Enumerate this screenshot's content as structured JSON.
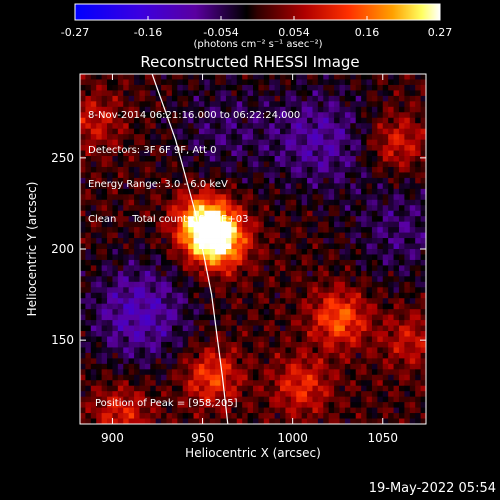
{
  "colorbar": {
    "ticks": [
      "-0.27",
      "-0.16",
      "-0.054",
      "0.054",
      "0.16",
      "0.27"
    ],
    "unit_label": "(photons cm⁻² s⁻¹ asec⁻²)"
  },
  "info_lines": [
    "8-Nov-2014 06:21:16.000 to 06:22:24.000",
    "Detectors: 3F 6F 9F, Att 0",
    "Energy Range: 3.0 - 6.0 keV",
    "Clean     Total counts: 5.67E+03"
  ],
  "peak_label": "Position of Peak = [958,205]",
  "timestamp": "19-May-2022 05:54",
  "chart_data": {
    "type": "heatmap",
    "title": "Reconstructed RHESSI Image",
    "xlabel": "Heliocentric X (arcsec)",
    "ylabel": "Heliocentric Y (arcsec)",
    "xlim": [
      882,
      1074
    ],
    "ylim": [
      104,
      296
    ],
    "xticks": [
      900,
      950,
      1000,
      1050
    ],
    "yticks": [
      150,
      200,
      250
    ],
    "color_range": [
      -0.27,
      0.27
    ],
    "colormap": [
      "#0000ff",
      "#5a1ed2",
      "#000000",
      "#a00000",
      "#ff4000",
      "#ffa000",
      "#ffff80",
      "#ffffff"
    ],
    "peak_position": [
      958,
      205
    ],
    "peak_value": 0.27,
    "limb_line": [
      [
        922,
        296
      ],
      [
        935,
        260
      ],
      [
        946,
        220
      ],
      [
        955,
        175
      ],
      [
        961,
        130
      ],
      [
        964,
        104
      ]
    ],
    "sources": [
      {
        "x": 958,
        "y": 205,
        "value": 0.27
      },
      {
        "x": 950,
        "y": 215,
        "value": 0.2
      },
      {
        "x": 1026,
        "y": 162,
        "value": 0.15
      },
      {
        "x": 955,
        "y": 130,
        "value": 0.13
      },
      {
        "x": 1005,
        "y": 125,
        "value": 0.11
      },
      {
        "x": 1058,
        "y": 258,
        "value": 0.1
      },
      {
        "x": 890,
        "y": 270,
        "value": 0.08
      },
      {
        "x": 905,
        "y": 110,
        "value": 0.1
      },
      {
        "x": 1065,
        "y": 150,
        "value": 0.08
      }
    ],
    "dips": [
      {
        "x": 915,
        "y": 165,
        "value": -0.12
      },
      {
        "x": 1015,
        "y": 260,
        "value": -0.1
      },
      {
        "x": 1060,
        "y": 210,
        "value": -0.07
      },
      {
        "x": 960,
        "y": 265,
        "value": -0.06
      }
    ]
  }
}
